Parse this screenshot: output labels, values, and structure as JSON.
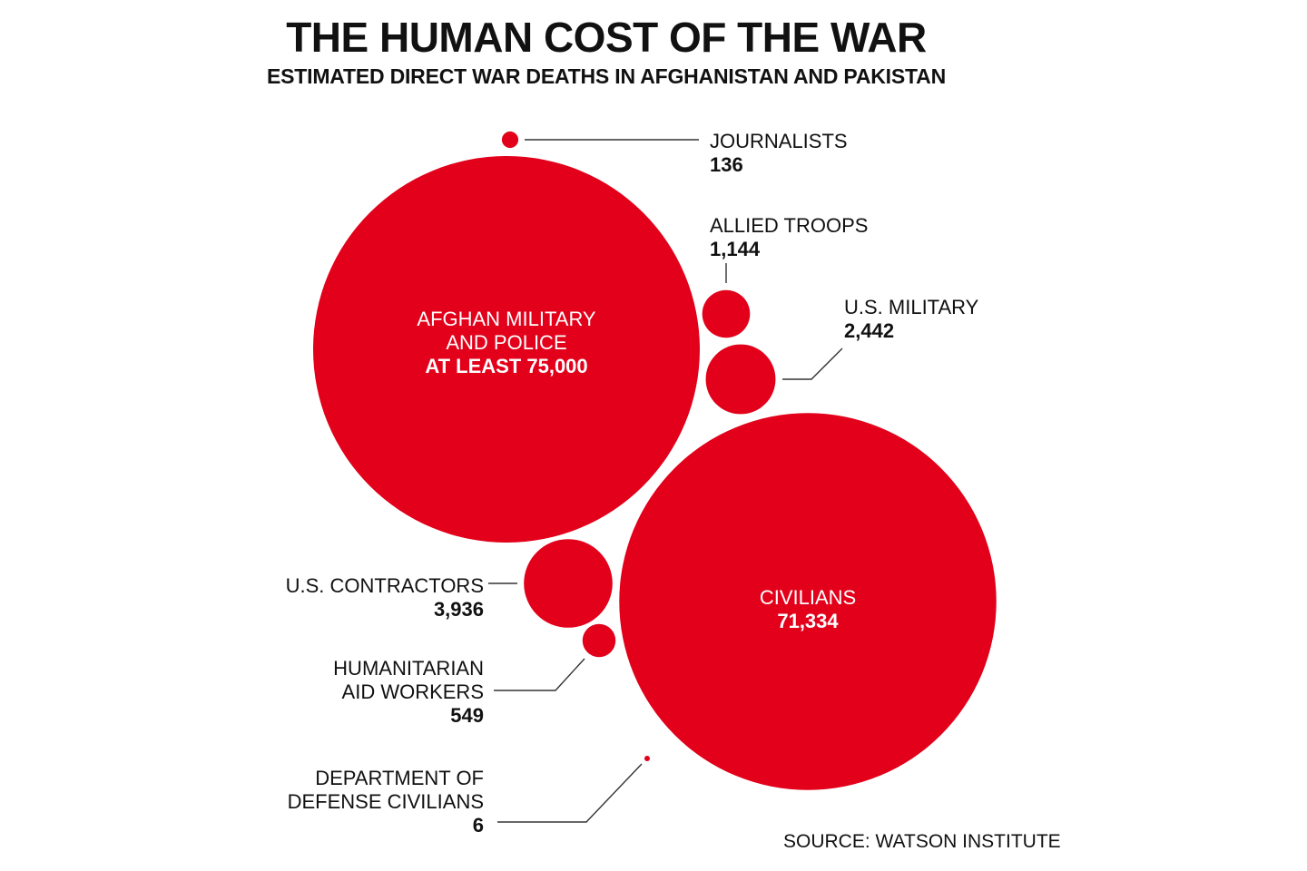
{
  "header": {
    "title": "THE HUMAN COST OF THE WAR",
    "subtitle": "ESTIMATED DIRECT WAR DEATHS IN AFGHANISTAN AND PAKISTAN"
  },
  "source": "SOURCE: WATSON INSTITUTE",
  "colors": {
    "bubble": "#e2001a",
    "text": "#111111",
    "inner_text": "#ffffff",
    "leader": "#333333"
  },
  "chart_data": {
    "type": "bubble",
    "title": "THE HUMAN COST OF THE WAR",
    "subtitle": "ESTIMATED DIRECT WAR DEATHS IN AFGHANISTAN AND PAKISTAN",
    "unit": "deaths",
    "items": [
      {
        "id": "journalists",
        "label_lines": [
          "JOURNALISTS"
        ],
        "value": 136,
        "value_label": "136"
      },
      {
        "id": "afghan-military",
        "label_lines": [
          "AFGHAN MILITARY",
          "AND POLICE"
        ],
        "value": 75000,
        "value_label": "AT LEAST 75,000"
      },
      {
        "id": "allied-troops",
        "label_lines": [
          "ALLIED TROOPS"
        ],
        "value": 1144,
        "value_label": "1,144"
      },
      {
        "id": "us-military",
        "label_lines": [
          "U.S. MILITARY"
        ],
        "value": 2442,
        "value_label": "2,442"
      },
      {
        "id": "civilians",
        "label_lines": [
          "CIVILIANS"
        ],
        "value": 71334,
        "value_label": "71,334"
      },
      {
        "id": "us-contractors",
        "label_lines": [
          "U.S. CONTRACTORS"
        ],
        "value": 3936,
        "value_label": "3,936"
      },
      {
        "id": "aid-workers",
        "label_lines": [
          "HUMANITARIAN",
          "AID WORKERS"
        ],
        "value": 549,
        "value_label": "549"
      },
      {
        "id": "dod-civilians",
        "label_lines": [
          "DEPARTMENT OF",
          "DEFENSE CIVILIANS"
        ],
        "value": 6,
        "value_label": "6"
      }
    ]
  }
}
